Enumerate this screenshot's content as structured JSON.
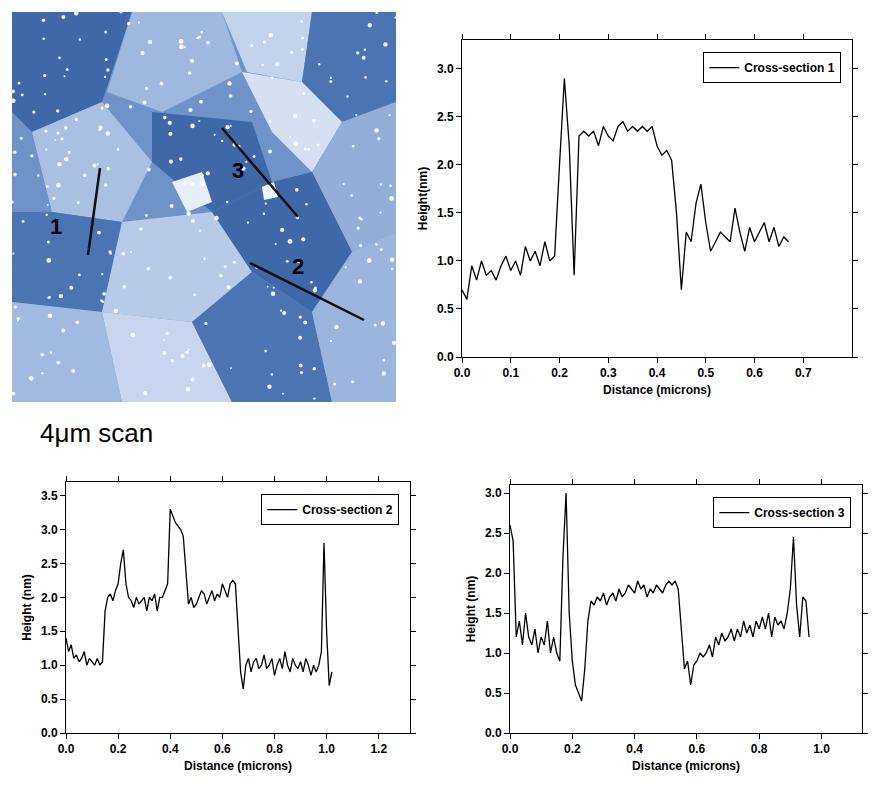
{
  "image": {
    "caption": "4μm scan",
    "line_labels": [
      "1",
      "2",
      "3"
    ]
  },
  "chart_data": [
    {
      "type": "line",
      "xlabel": "Distance (microns)",
      "ylabel": "Height(nm)",
      "grid": false,
      "legend": "upper right",
      "xlim": [
        0,
        0.8
      ],
      "ylim": [
        0,
        3.3
      ],
      "xticks": [
        {
          "value": 0,
          "label": "0.0"
        },
        {
          "value": 0.1,
          "label": "0.1"
        },
        {
          "value": 0.2,
          "label": "0.2"
        },
        {
          "value": 0.3,
          "label": "0.3"
        },
        {
          "value": 0.4,
          "label": "0.4"
        },
        {
          "value": 0.5,
          "label": "0.5"
        },
        {
          "value": 0.6,
          "label": "0.6"
        },
        {
          "value": 0.7,
          "label": "0.7"
        }
      ],
      "yticks": [
        {
          "value": 0,
          "label": "0.0"
        },
        {
          "value": 0.5,
          "label": "0.5"
        },
        {
          "value": 1,
          "label": "1.0"
        },
        {
          "value": 1.5,
          "label": "1.5"
        },
        {
          "value": 2,
          "label": "2.0"
        },
        {
          "value": 2.5,
          "label": "2.5"
        },
        {
          "value": 3,
          "label": "3.0"
        }
      ],
      "x": [
        0,
        0.01,
        0.02,
        0.03,
        0.04,
        0.05,
        0.06,
        0.07,
        0.08,
        0.09,
        0.1,
        0.11,
        0.12,
        0.13,
        0.14,
        0.15,
        0.16,
        0.17,
        0.18,
        0.19,
        0.2,
        0.21,
        0.22,
        0.23,
        0.24,
        0.25,
        0.26,
        0.27,
        0.28,
        0.29,
        0.3,
        0.31,
        0.32,
        0.33,
        0.34,
        0.35,
        0.36,
        0.37,
        0.38,
        0.39,
        0.4,
        0.41,
        0.42,
        0.43,
        0.44,
        0.45,
        0.46,
        0.47,
        0.48,
        0.49,
        0.5,
        0.51,
        0.52,
        0.53,
        0.54,
        0.55,
        0.56,
        0.57,
        0.58,
        0.59,
        0.6,
        0.61,
        0.62,
        0.63,
        0.64,
        0.65,
        0.66,
        0.67
      ],
      "series": [
        {
          "name": "Cross-section 1",
          "color": "#000000",
          "values": [
            0.7,
            0.6,
            0.95,
            0.8,
            1.0,
            0.85,
            0.9,
            0.8,
            0.95,
            1.05,
            0.9,
            1.0,
            0.85,
            1.15,
            1.0,
            1.1,
            0.95,
            1.2,
            1.0,
            1.05,
            2.0,
            2.9,
            2.2,
            0.85,
            2.3,
            2.35,
            2.3,
            2.35,
            2.2,
            2.4,
            2.3,
            2.25,
            2.4,
            2.45,
            2.35,
            2.4,
            2.35,
            2.4,
            2.35,
            2.4,
            2.2,
            2.1,
            2.15,
            2.05,
            1.5,
            0.7,
            1.3,
            1.2,
            1.6,
            1.8,
            1.4,
            1.1,
            1.2,
            1.3,
            1.25,
            1.2,
            1.55,
            1.3,
            1.1,
            1.35,
            1.2,
            1.3,
            1.4,
            1.2,
            1.35,
            1.15,
            1.25,
            1.2
          ]
        }
      ]
    },
    {
      "type": "line",
      "xlabel": "Distance (microns)",
      "ylabel": "Height (nm)",
      "grid": false,
      "legend": "upper right",
      "xlim": [
        0,
        1.32
      ],
      "ylim": [
        0,
        3.7
      ],
      "xticks": [
        {
          "value": 0,
          "label": "0.0"
        },
        {
          "value": 0.2,
          "label": "0.2"
        },
        {
          "value": 0.4,
          "label": "0.4"
        },
        {
          "value": 0.6,
          "label": "0.6"
        },
        {
          "value": 0.8,
          "label": "0.8"
        },
        {
          "value": 1,
          "label": "1.0"
        },
        {
          "value": 1.2,
          "label": "1.2"
        }
      ],
      "yticks": [
        {
          "value": 0,
          "label": "0.0"
        },
        {
          "value": 0.5,
          "label": "0.5"
        },
        {
          "value": 1,
          "label": "1.0"
        },
        {
          "value": 1.5,
          "label": "1.5"
        },
        {
          "value": 2,
          "label": "2.0"
        },
        {
          "value": 2.5,
          "label": "2.5"
        },
        {
          "value": 3,
          "label": "3.0"
        },
        {
          "value": 3.5,
          "label": "3.5"
        }
      ],
      "x": [
        0,
        0.01,
        0.02,
        0.03,
        0.04,
        0.05,
        0.06,
        0.07,
        0.08,
        0.09,
        0.1,
        0.11,
        0.12,
        0.13,
        0.14,
        0.15,
        0.16,
        0.17,
        0.18,
        0.19,
        0.2,
        0.21,
        0.22,
        0.23,
        0.24,
        0.25,
        0.26,
        0.27,
        0.28,
        0.29,
        0.3,
        0.31,
        0.32,
        0.33,
        0.34,
        0.35,
        0.36,
        0.37,
        0.38,
        0.39,
        0.4,
        0.41,
        0.42,
        0.43,
        0.44,
        0.45,
        0.46,
        0.47,
        0.48,
        0.49,
        0.5,
        0.51,
        0.52,
        0.53,
        0.54,
        0.55,
        0.56,
        0.57,
        0.58,
        0.59,
        0.6,
        0.61,
        0.62,
        0.63,
        0.64,
        0.65,
        0.66,
        0.67,
        0.68,
        0.69,
        0.7,
        0.71,
        0.72,
        0.73,
        0.74,
        0.75,
        0.76,
        0.77,
        0.78,
        0.79,
        0.8,
        0.81,
        0.82,
        0.83,
        0.84,
        0.85,
        0.86,
        0.87,
        0.88,
        0.89,
        0.9,
        0.91,
        0.92,
        0.93,
        0.94,
        0.95,
        0.96,
        0.97,
        0.98,
        0.99,
        1.0,
        1.01,
        1.02
      ],
      "series": [
        {
          "name": "Cross-section 2",
          "color": "#000000",
          "values": [
            1.4,
            1.2,
            1.3,
            1.1,
            1.15,
            1.05,
            1.1,
            1.2,
            1.0,
            1.1,
            1.05,
            1.0,
            1.1,
            1.0,
            1.05,
            1.8,
            2.0,
            2.05,
            1.95,
            2.1,
            2.2,
            2.5,
            2.7,
            2.2,
            2.0,
            1.95,
            1.85,
            2.0,
            1.9,
            1.95,
            2.0,
            1.8,
            2.0,
            1.95,
            2.05,
            1.8,
            2.0,
            2.0,
            2.1,
            2.2,
            3.3,
            3.2,
            3.1,
            3.05,
            3.0,
            2.9,
            2.4,
            1.9,
            2.0,
            1.85,
            1.9,
            2.0,
            2.1,
            2.05,
            1.9,
            2.0,
            2.1,
            1.95,
            2.05,
            2.0,
            2.2,
            2.1,
            2.0,
            2.2,
            2.25,
            2.2,
            1.5,
            0.9,
            0.65,
            1.0,
            1.1,
            0.9,
            1.05,
            1.1,
            0.95,
            1.0,
            1.15,
            0.95,
            1.0,
            1.1,
            0.85,
            1.0,
            1.1,
            0.95,
            1.2,
            1.0,
            0.9,
            1.1,
            1.0,
            0.95,
            1.05,
            0.9,
            1.1,
            1.0,
            0.85,
            1.0,
            0.9,
            1.0,
            1.2,
            2.8,
            1.5,
            0.7,
            0.9
          ]
        }
      ]
    },
    {
      "type": "line",
      "xlabel": "Distance (microns)",
      "ylabel": "Height (nm)",
      "grid": false,
      "legend": "upper right",
      "xlim": [
        0,
        1.13
      ],
      "ylim": [
        0,
        3.1
      ],
      "xticks": [
        {
          "value": 0,
          "label": "0.0"
        },
        {
          "value": 0.2,
          "label": "0.2"
        },
        {
          "value": 0.4,
          "label": "0.4"
        },
        {
          "value": 0.6,
          "label": "0.6"
        },
        {
          "value": 0.8,
          "label": "0.8"
        },
        {
          "value": 1,
          "label": "1.0"
        }
      ],
      "yticks": [
        {
          "value": 0,
          "label": "0.0"
        },
        {
          "value": 0.5,
          "label": "0.5"
        },
        {
          "value": 1,
          "label": "1.0"
        },
        {
          "value": 1.5,
          "label": "1.5"
        },
        {
          "value": 2,
          "label": "2.0"
        },
        {
          "value": 2.5,
          "label": "2.5"
        },
        {
          "value": 3,
          "label": "3.0"
        }
      ],
      "x": [
        0,
        0.01,
        0.02,
        0.03,
        0.04,
        0.05,
        0.06,
        0.07,
        0.08,
        0.09,
        0.1,
        0.11,
        0.12,
        0.13,
        0.14,
        0.15,
        0.16,
        0.17,
        0.18,
        0.19,
        0.2,
        0.21,
        0.22,
        0.23,
        0.24,
        0.25,
        0.26,
        0.27,
        0.28,
        0.29,
        0.3,
        0.31,
        0.32,
        0.33,
        0.34,
        0.35,
        0.36,
        0.37,
        0.38,
        0.39,
        0.4,
        0.41,
        0.42,
        0.43,
        0.44,
        0.45,
        0.46,
        0.47,
        0.48,
        0.49,
        0.5,
        0.51,
        0.52,
        0.53,
        0.54,
        0.55,
        0.56,
        0.57,
        0.58,
        0.59,
        0.6,
        0.61,
        0.62,
        0.63,
        0.64,
        0.65,
        0.66,
        0.67,
        0.68,
        0.69,
        0.7,
        0.71,
        0.72,
        0.73,
        0.74,
        0.75,
        0.76,
        0.77,
        0.78,
        0.79,
        0.8,
        0.81,
        0.82,
        0.83,
        0.84,
        0.85,
        0.86,
        0.87,
        0.88,
        0.89,
        0.9,
        0.91,
        0.92,
        0.93,
        0.94,
        0.95,
        0.96
      ],
      "series": [
        {
          "name": "Cross-section 3",
          "color": "#000000",
          "values": [
            2.6,
            2.4,
            1.2,
            1.4,
            1.1,
            1.5,
            1.2,
            1.1,
            1.3,
            1.0,
            1.2,
            1.1,
            1.4,
            1.0,
            1.2,
            1.0,
            0.9,
            2.2,
            3.0,
            1.5,
            0.9,
            0.6,
            0.5,
            0.4,
            0.8,
            1.4,
            1.65,
            1.6,
            1.7,
            1.65,
            1.75,
            1.6,
            1.7,
            1.75,
            1.65,
            1.8,
            1.7,
            1.75,
            1.85,
            1.8,
            1.75,
            1.9,
            1.8,
            1.85,
            1.7,
            1.8,
            1.75,
            1.85,
            1.8,
            1.75,
            1.85,
            1.9,
            1.85,
            1.9,
            1.8,
            1.3,
            0.8,
            0.9,
            0.6,
            0.85,
            0.9,
            1.0,
            0.95,
            1.0,
            1.1,
            0.95,
            1.2,
            1.1,
            1.25,
            1.15,
            1.2,
            1.3,
            1.15,
            1.3,
            1.2,
            1.4,
            1.25,
            1.35,
            1.2,
            1.4,
            1.3,
            1.45,
            1.3,
            1.5,
            1.2,
            1.45,
            1.35,
            1.4,
            1.3,
            1.5,
            1.8,
            2.45,
            1.6,
            1.2,
            1.7,
            1.65,
            1.2
          ]
        }
      ]
    }
  ]
}
